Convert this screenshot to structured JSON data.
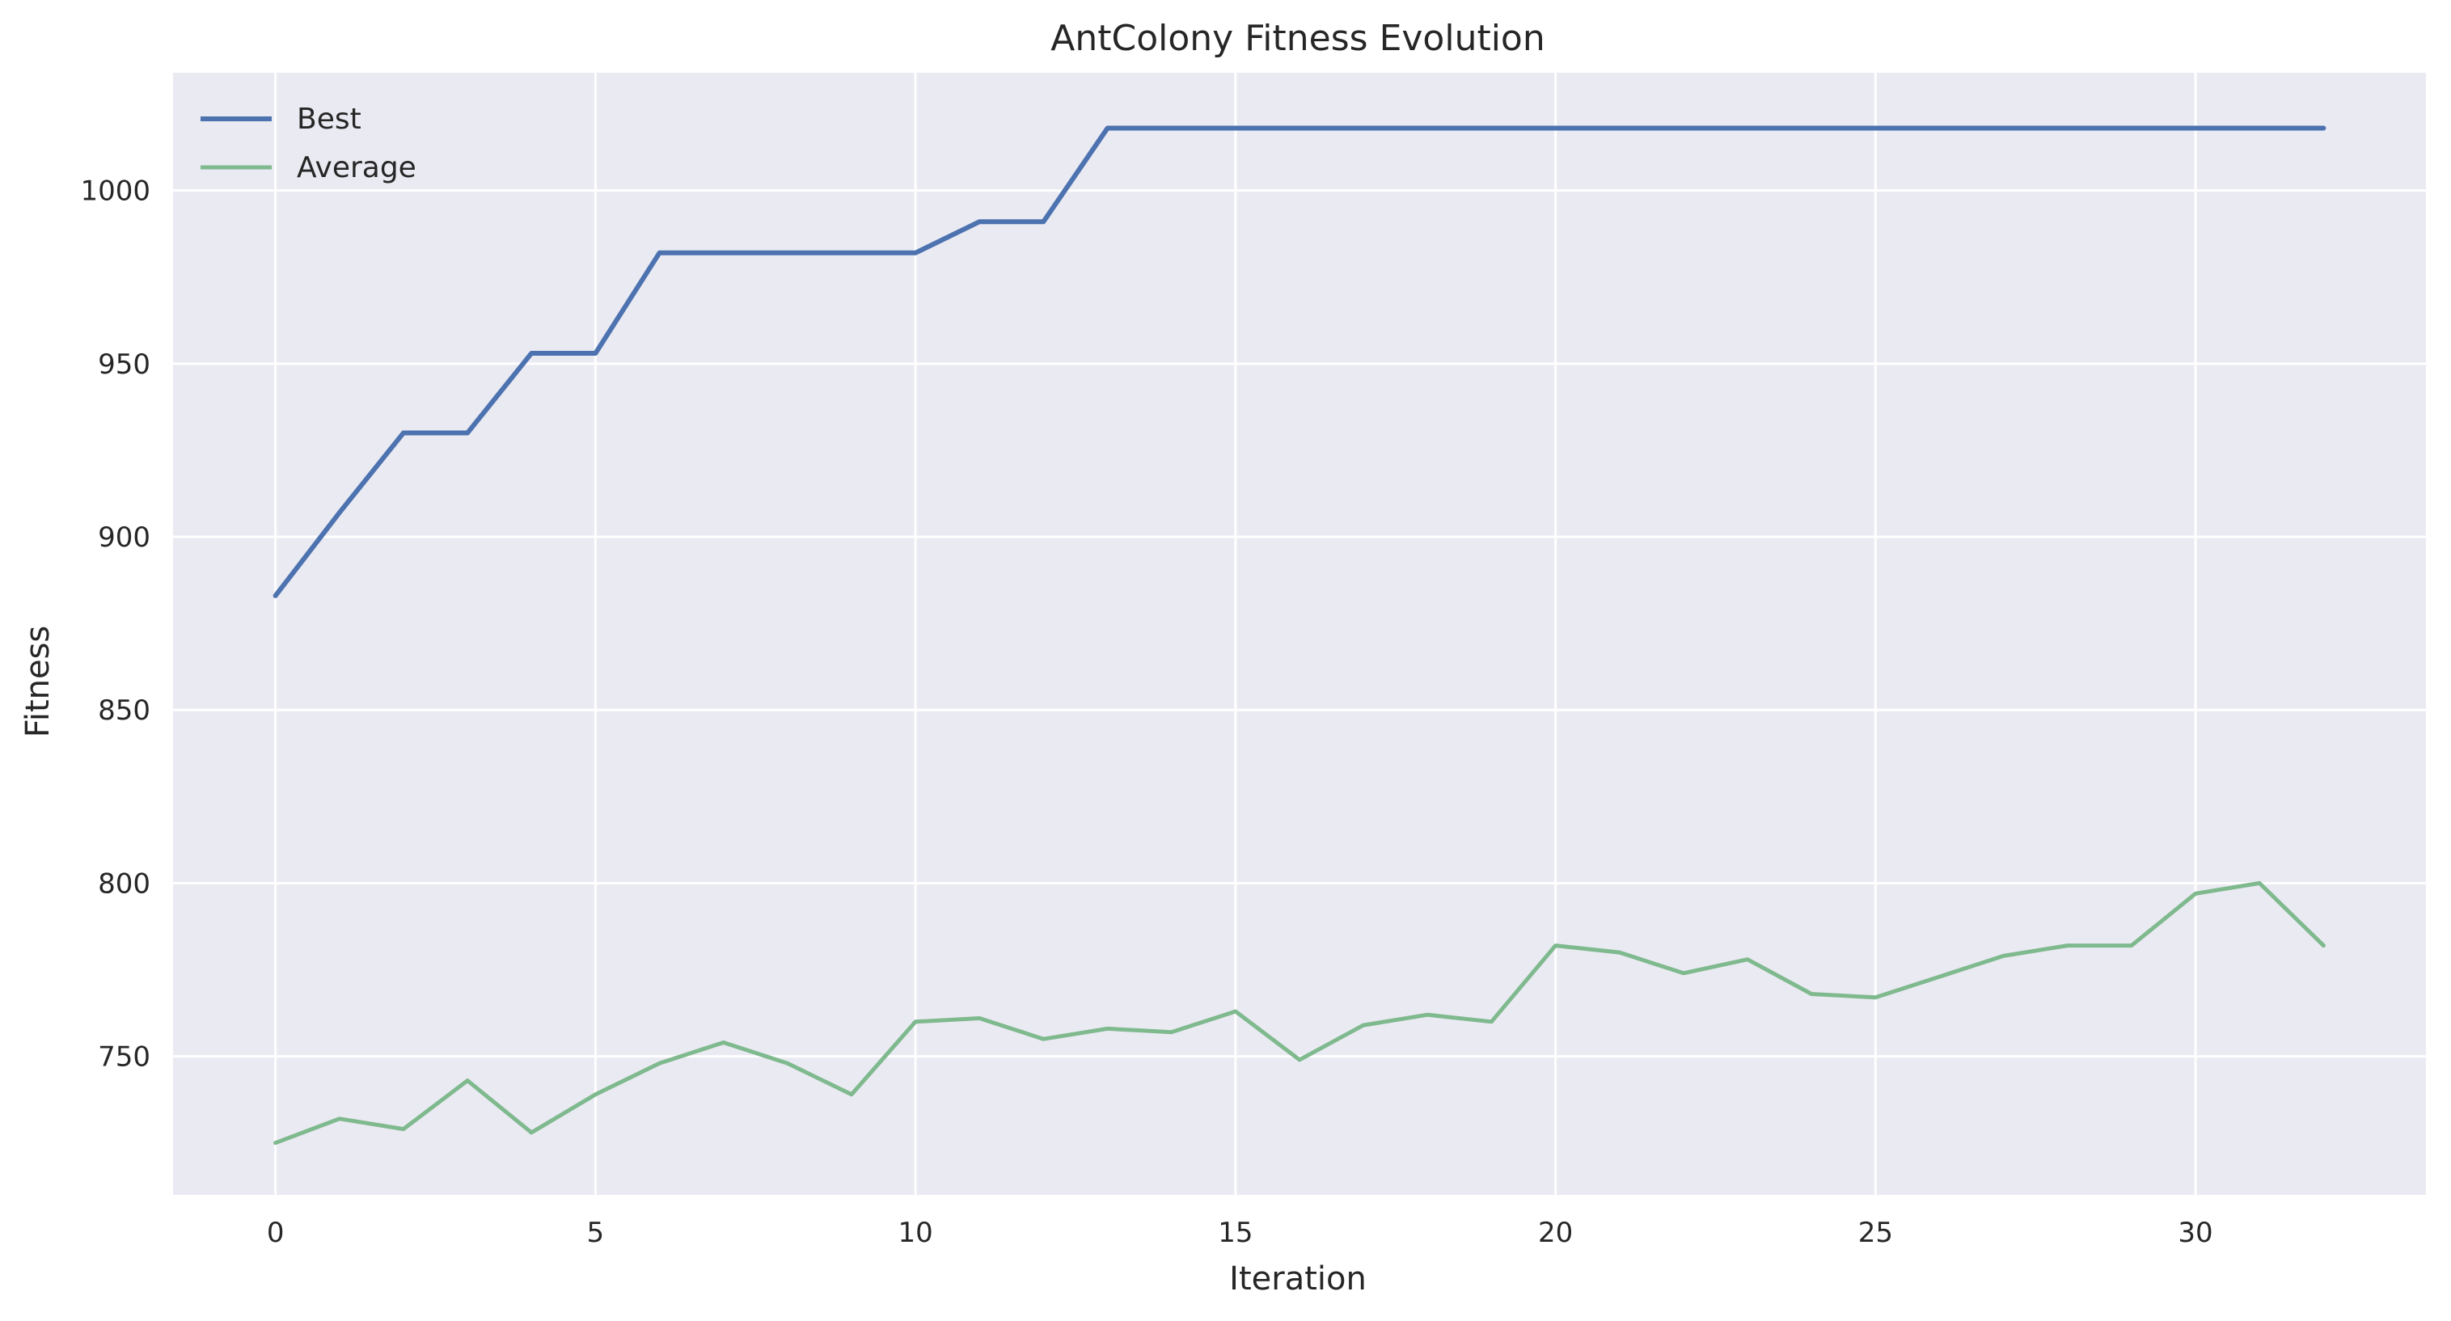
{
  "chart_data": {
    "type": "line",
    "title": "AntColony Fitness Evolution",
    "xlabel": "Iteration",
    "ylabel": "Fitness",
    "xlim": [
      -1.6,
      33.6
    ],
    "ylim": [
      710,
      1034
    ],
    "xticks": [
      0,
      5,
      10,
      15,
      20,
      25,
      30
    ],
    "yticks": [
      750,
      800,
      850,
      900,
      950,
      1000
    ],
    "grid": true,
    "legend_position": "top-left",
    "background_color": "#EAEAF2",
    "grid_color": "#FFFFFF",
    "x": [
      0,
      1,
      2,
      3,
      4,
      5,
      6,
      7,
      8,
      9,
      10,
      11,
      12,
      13,
      14,
      15,
      16,
      17,
      18,
      19,
      20,
      21,
      22,
      23,
      24,
      25,
      26,
      27,
      28,
      29,
      30,
      31,
      32
    ],
    "series": [
      {
        "name": "Best",
        "color": "#4C72B0",
        "values": [
          883,
          907,
          930,
          930,
          953,
          953,
          982,
          982,
          982,
          982,
          982,
          991,
          991,
          1018,
          1018,
          1018,
          1018,
          1018,
          1018,
          1018,
          1018,
          1018,
          1018,
          1018,
          1018,
          1018,
          1018,
          1018,
          1018,
          1018,
          1018,
          1018,
          1018
        ]
      },
      {
        "name": "Average",
        "color": "#7FB98E",
        "values": [
          725,
          732,
          729,
          743,
          728,
          739,
          748,
          754,
          748,
          739,
          760,
          761,
          755,
          758,
          757,
          763,
          749,
          759,
          762,
          760,
          782,
          780,
          774,
          778,
          768,
          767,
          773,
          779,
          782,
          782,
          797,
          800,
          782
        ]
      }
    ]
  }
}
